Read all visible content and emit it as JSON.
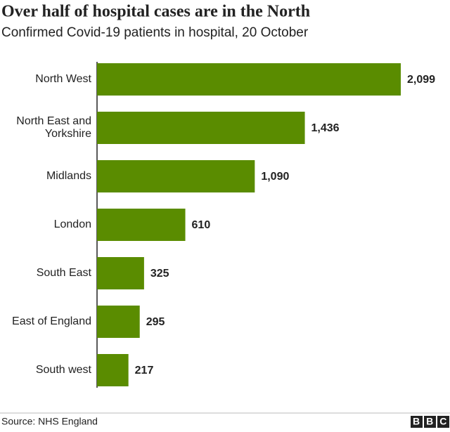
{
  "chart_data": {
    "type": "bar",
    "orientation": "horizontal",
    "title": "Over half of hospital cases are in the North",
    "subtitle": "Confirmed Covid-19 patients in hospital, 20 October",
    "categories": [
      "North West",
      "North East and Yorkshire",
      "Midlands",
      "London",
      "South East",
      "East of England",
      "South west"
    ],
    "values": [
      2099,
      1436,
      1090,
      610,
      325,
      295,
      217
    ],
    "value_labels": [
      "2,099",
      "1,436",
      "1,090",
      "610",
      "325",
      "295",
      "217"
    ],
    "color": "#5a8c00",
    "source": "Source: NHS England",
    "logo": "BBC"
  }
}
